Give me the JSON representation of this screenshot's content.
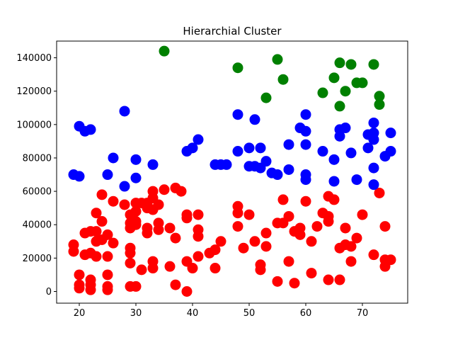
{
  "chart_data": {
    "type": "scatter",
    "title": "Hierarchial Cluster",
    "xlabel": "",
    "ylabel": "",
    "xlim": [
      16,
      78
    ],
    "ylim": [
      -7000,
      150000
    ],
    "xticks": [
      20,
      30,
      40,
      50,
      60,
      70
    ],
    "yticks": [
      0,
      20000,
      40000,
      60000,
      80000,
      100000,
      120000,
      140000
    ],
    "grid": false,
    "series": [
      {
        "color": "#ff0000",
        "points": [
          [
            19,
            28000
          ],
          [
            19,
            24000
          ],
          [
            20,
            10000
          ],
          [
            20,
            4000
          ],
          [
            20,
            2000
          ],
          [
            21,
            35000
          ],
          [
            21,
            22000
          ],
          [
            22,
            36000
          ],
          [
            22,
            7000
          ],
          [
            22,
            4000
          ],
          [
            22,
            1000
          ],
          [
            22,
            23000
          ],
          [
            23,
            47000
          ],
          [
            23,
            36000
          ],
          [
            23,
            30000
          ],
          [
            23,
            21000
          ],
          [
            24,
            58000
          ],
          [
            24,
            42000
          ],
          [
            24,
            31000
          ],
          [
            25,
            34000
          ],
          [
            25,
            21000
          ],
          [
            25,
            10000
          ],
          [
            25,
            3000
          ],
          [
            25,
            1000
          ],
          [
            26,
            54000
          ],
          [
            26,
            29000
          ],
          [
            28,
            52000
          ],
          [
            29,
            46000
          ],
          [
            29,
            41000
          ],
          [
            29,
            38000
          ],
          [
            29,
            26000
          ],
          [
            29,
            23000
          ],
          [
            29,
            17000
          ],
          [
            29,
            3000
          ],
          [
            30,
            53000
          ],
          [
            30,
            48000
          ],
          [
            30,
            42000
          ],
          [
            30,
            40000
          ],
          [
            30,
            3000
          ],
          [
            31,
            53000
          ],
          [
            31,
            13000
          ],
          [
            32,
            53000
          ],
          [
            32,
            50000
          ],
          [
            32,
            38000
          ],
          [
            32,
            35000
          ],
          [
            33,
            60000
          ],
          [
            33,
            56000
          ],
          [
            33,
            49000
          ],
          [
            33,
            18000
          ],
          [
            33,
            14000
          ],
          [
            34,
            52000
          ],
          [
            34,
            41000
          ],
          [
            34,
            37000
          ],
          [
            35,
            61000
          ],
          [
            36,
            38000
          ],
          [
            36,
            15000
          ],
          [
            37,
            62000
          ],
          [
            37,
            32000
          ],
          [
            37,
            4000
          ],
          [
            38,
            60000
          ],
          [
            39,
            46000
          ],
          [
            39,
            44000
          ],
          [
            39,
            18000
          ],
          [
            39,
            0
          ],
          [
            40,
            14000
          ],
          [
            41,
            46000
          ],
          [
            41,
            37000
          ],
          [
            41,
            33000
          ],
          [
            41,
            21000
          ],
          [
            43,
            23000
          ],
          [
            44,
            25000
          ],
          [
            44,
            14000
          ],
          [
            45,
            30000
          ],
          [
            48,
            51000
          ],
          [
            48,
            47000
          ],
          [
            48,
            39000
          ],
          [
            49,
            26000
          ],
          [
            50,
            46000
          ],
          [
            51,
            30000
          ],
          [
            52,
            16000
          ],
          [
            52,
            13000
          ],
          [
            53,
            35000
          ],
          [
            53,
            27000
          ],
          [
            55,
            41000
          ],
          [
            55,
            6000
          ],
          [
            56,
            55000
          ],
          [
            56,
            41000
          ],
          [
            57,
            45000
          ],
          [
            57,
            18000
          ],
          [
            58,
            36000
          ],
          [
            58,
            5000
          ],
          [
            59,
            38000
          ],
          [
            59,
            34000
          ],
          [
            60,
            54000
          ],
          [
            61,
            30000
          ],
          [
            61,
            11000
          ],
          [
            62,
            39000
          ],
          [
            63,
            47000
          ],
          [
            64,
            57000
          ],
          [
            64,
            45000
          ],
          [
            64,
            42000
          ],
          [
            64,
            7000
          ],
          [
            65,
            55000
          ],
          [
            66,
            26000
          ],
          [
            66,
            7000
          ],
          [
            67,
            38000
          ],
          [
            67,
            28000
          ],
          [
            68,
            27000
          ],
          [
            68,
            18000
          ],
          [
            69,
            32000
          ],
          [
            70,
            46000
          ],
          [
            72,
            22000
          ],
          [
            73,
            59000
          ],
          [
            74,
            39000
          ],
          [
            74,
            19000
          ],
          [
            74,
            15000
          ],
          [
            75,
            19000
          ]
        ]
      },
      {
        "color": "#0000ff",
        "points": [
          [
            19,
            70000
          ],
          [
            20,
            69000
          ],
          [
            20,
            99000
          ],
          [
            21,
            96000
          ],
          [
            22,
            97000
          ],
          [
            25,
            70000
          ],
          [
            26,
            80000
          ],
          [
            28,
            63000
          ],
          [
            28,
            108000
          ],
          [
            30,
            68000
          ],
          [
            30,
            79000
          ],
          [
            33,
            76000
          ],
          [
            39,
            84000
          ],
          [
            40,
            86000
          ],
          [
            41,
            91000
          ],
          [
            44,
            76000
          ],
          [
            45,
            76000
          ],
          [
            46,
            76000
          ],
          [
            48,
            84000
          ],
          [
            48,
            106000
          ],
          [
            50,
            86000
          ],
          [
            50,
            75000
          ],
          [
            51,
            75000
          ],
          [
            51,
            103000
          ],
          [
            52,
            86000
          ],
          [
            52,
            74000
          ],
          [
            53,
            78000
          ],
          [
            54,
            71000
          ],
          [
            55,
            70000
          ],
          [
            57,
            73000
          ],
          [
            57,
            88000
          ],
          [
            59,
            98000
          ],
          [
            60,
            96000
          ],
          [
            60,
            106000
          ],
          [
            60,
            88000
          ],
          [
            60,
            70000
          ],
          [
            60,
            67000
          ],
          [
            63,
            84000
          ],
          [
            65,
            66000
          ],
          [
            65,
            79000
          ],
          [
            66,
            93000
          ],
          [
            66,
            97000
          ],
          [
            67,
            98000
          ],
          [
            68,
            83000
          ],
          [
            69,
            67000
          ],
          [
            71,
            86000
          ],
          [
            71,
            94000
          ],
          [
            72,
            101000
          ],
          [
            72,
            95000
          ],
          [
            72,
            91000
          ],
          [
            72,
            74000
          ],
          [
            72,
            64000
          ],
          [
            74,
            81000
          ],
          [
            75,
            84000
          ],
          [
            75,
            95000
          ]
        ]
      },
      {
        "color": "#008000",
        "points": [
          [
            35,
            144000
          ],
          [
            48,
            134000
          ],
          [
            53,
            116000
          ],
          [
            55,
            139000
          ],
          [
            56,
            127000
          ],
          [
            63,
            119000
          ],
          [
            65,
            128000
          ],
          [
            66,
            137000
          ],
          [
            66,
            111000
          ],
          [
            67,
            120000
          ],
          [
            68,
            136000
          ],
          [
            69,
            125000
          ],
          [
            70,
            125000
          ],
          [
            72,
            136000
          ],
          [
            73,
            117000
          ],
          [
            73,
            112000
          ]
        ]
      }
    ]
  }
}
